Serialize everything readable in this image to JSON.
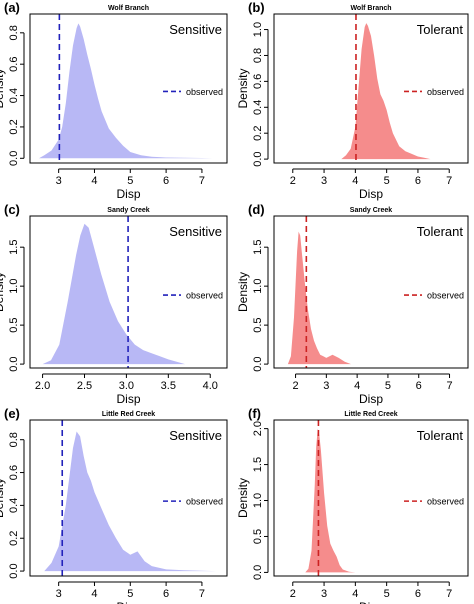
{
  "figure": {
    "panels": [
      {
        "letter": "(a)",
        "site": "Wolf Branch",
        "group": "Sensitive",
        "xlabel": "Disp",
        "ylabel": "Density",
        "legend": "observed",
        "color": "#b8b8f5",
        "line_color": "#2222bb",
        "observed": 3.02,
        "xlim": [
          2.2,
          7.7
        ],
        "ylim": [
          -0.03,
          0.92
        ],
        "x_ticks": [
          3,
          4,
          5,
          6,
          7
        ],
        "y_ticks": [
          0.0,
          0.2,
          0.4,
          0.6,
          0.8
        ],
        "y_tick_labels": [
          "0.0",
          "0.2",
          "0.4",
          "0.6",
          "0.8"
        ],
        "density": {
          "x": [
            2.45,
            2.6,
            2.8,
            3.0,
            3.1,
            3.2,
            3.3,
            3.4,
            3.5,
            3.55,
            3.6,
            3.7,
            3.8,
            3.9,
            4.0,
            4.1,
            4.2,
            4.4,
            4.6,
            4.8,
            5.0,
            5.3,
            5.6,
            6.0,
            6.5,
            7.0,
            7.3
          ],
          "y": [
            0.0,
            0.02,
            0.05,
            0.12,
            0.2,
            0.35,
            0.55,
            0.72,
            0.83,
            0.86,
            0.84,
            0.76,
            0.66,
            0.57,
            0.47,
            0.38,
            0.3,
            0.19,
            0.13,
            0.08,
            0.04,
            0.02,
            0.01,
            0.005,
            0.003,
            0.002,
            0.0
          ]
        }
      },
      {
        "letter": "(b)",
        "site": "Wolf Branch",
        "group": "Tolerant",
        "xlabel": "Disp",
        "ylabel": "Density",
        "legend": "observed",
        "color": "#f58c8c",
        "line_color": "#cc2222",
        "observed": 4.02,
        "xlim": [
          1.4,
          7.6
        ],
        "ylim": [
          -0.03,
          1.12
        ],
        "x_ticks": [
          2,
          3,
          4,
          5,
          6,
          7
        ],
        "y_ticks": [
          0.0,
          0.2,
          0.4,
          0.6,
          0.8,
          1.0
        ],
        "y_tick_labels": [
          "0.0",
          "0.2",
          "0.4",
          "0.6",
          "0.8",
          "1.0"
        ],
        "density": {
          "x": [
            3.55,
            3.7,
            3.85,
            4.0,
            4.1,
            4.2,
            4.3,
            4.35,
            4.4,
            4.5,
            4.6,
            4.7,
            4.8,
            4.9,
            5.0,
            5.1,
            5.2,
            5.4,
            5.6,
            5.8,
            6.0,
            6.2,
            6.4
          ],
          "y": [
            0.0,
            0.03,
            0.08,
            0.25,
            0.55,
            0.85,
            1.02,
            1.05,
            1.03,
            0.95,
            0.8,
            0.62,
            0.5,
            0.45,
            0.38,
            0.28,
            0.2,
            0.1,
            0.06,
            0.04,
            0.02,
            0.01,
            0.0
          ]
        }
      },
      {
        "letter": "(c)",
        "site": "Sandy Creek",
        "group": "Sensitive",
        "xlabel": "Disp",
        "ylabel": "Density",
        "legend": "observed",
        "color": "#b8b8f5",
        "line_color": "#2222bb",
        "observed": 3.02,
        "xlim": [
          1.85,
          4.2
        ],
        "ylim": [
          -0.05,
          1.9
        ],
        "x_ticks": [
          2.0,
          2.5,
          3.0,
          3.5,
          4.0
        ],
        "y_ticks": [
          0.0,
          0.5,
          1.0,
          1.5
        ],
        "x_tick_labels": [
          "2.0",
          "2.5",
          "3.0",
          "3.5",
          "4.0"
        ],
        "y_tick_labels": [
          "0.0",
          "0.5",
          "1.0",
          "1.5"
        ],
        "density": {
          "x": [
            2.0,
            2.1,
            2.2,
            2.3,
            2.4,
            2.45,
            2.5,
            2.55,
            2.6,
            2.7,
            2.8,
            2.9,
            3.0,
            3.1,
            3.2,
            3.3,
            3.4,
            3.5,
            3.6,
            3.7
          ],
          "y": [
            0.0,
            0.05,
            0.25,
            0.8,
            1.4,
            1.65,
            1.8,
            1.75,
            1.55,
            1.15,
            0.8,
            0.55,
            0.38,
            0.25,
            0.18,
            0.14,
            0.1,
            0.06,
            0.03,
            0.0
          ]
        }
      },
      {
        "letter": "(d)",
        "site": "Sandy Creek",
        "group": "Tolerant",
        "xlabel": "Disp",
        "ylabel": "Density",
        "legend": "observed",
        "color": "#f58c8c",
        "line_color": "#cc2222",
        "observed": 2.35,
        "xlim": [
          1.3,
          7.6
        ],
        "ylim": [
          -0.05,
          1.9
        ],
        "x_ticks": [
          2,
          3,
          4,
          5,
          6,
          7
        ],
        "y_ticks": [
          0.0,
          0.5,
          1.0,
          1.5
        ],
        "y_tick_labels": [
          "0.0",
          "0.5",
          "1.0",
          "1.5"
        ],
        "density": {
          "x": [
            1.75,
            1.85,
            1.95,
            2.05,
            2.1,
            2.15,
            2.2,
            2.3,
            2.4,
            2.5,
            2.6,
            2.7,
            2.8,
            2.9,
            3.0,
            3.2,
            3.4,
            3.6,
            3.8
          ],
          "y": [
            0.0,
            0.1,
            0.6,
            1.45,
            1.7,
            1.65,
            1.45,
            1.05,
            0.7,
            0.45,
            0.3,
            0.2,
            0.12,
            0.1,
            0.08,
            0.12,
            0.08,
            0.03,
            0.0
          ]
        }
      },
      {
        "letter": "(e)",
        "site": "Little Red Creek",
        "group": "Sensitive",
        "xlabel": "Disp",
        "ylabel": "Density",
        "legend": "observed",
        "color": "#b8b8f5",
        "line_color": "#2222bb",
        "observed": 3.1,
        "xlim": [
          2.2,
          7.7
        ],
        "ylim": [
          -0.03,
          0.92
        ],
        "x_ticks": [
          3,
          4,
          5,
          6,
          7
        ],
        "y_ticks": [
          0.0,
          0.2,
          0.4,
          0.6,
          0.8
        ],
        "y_tick_labels": [
          "0.0",
          "0.2",
          "0.4",
          "0.6",
          "0.8"
        ],
        "density": {
          "x": [
            2.6,
            2.8,
            3.0,
            3.2,
            3.4,
            3.5,
            3.6,
            3.7,
            3.8,
            3.9,
            4.0,
            4.2,
            4.4,
            4.6,
            4.8,
            5.0,
            5.2,
            5.4,
            5.6,
            6.0,
            6.5,
            7.0,
            7.4
          ],
          "y": [
            0.0,
            0.05,
            0.15,
            0.4,
            0.75,
            0.85,
            0.82,
            0.7,
            0.6,
            0.55,
            0.48,
            0.38,
            0.28,
            0.2,
            0.13,
            0.1,
            0.12,
            0.06,
            0.03,
            0.01,
            0.005,
            0.002,
            0.0
          ]
        }
      },
      {
        "letter": "(f)",
        "site": "Little Red Creek",
        "group": "Tolerant",
        "xlabel": "Disp",
        "ylabel": "Density",
        "legend": "observed",
        "color": "#f58c8c",
        "line_color": "#cc2222",
        "observed": 2.82,
        "xlim": [
          1.4,
          7.6
        ],
        "ylim": [
          -0.05,
          2.12
        ],
        "x_ticks": [
          2,
          3,
          4,
          5,
          6,
          7
        ],
        "y_ticks": [
          0.0,
          0.5,
          1.0,
          1.5,
          2.0
        ],
        "y_tick_labels": [
          "0.0",
          "0.5",
          "1.0",
          "1.5",
          "2.0"
        ],
        "density": {
          "x": [
            2.4,
            2.5,
            2.6,
            2.7,
            2.75,
            2.8,
            2.85,
            2.9,
            3.0,
            3.1,
            3.2,
            3.3,
            3.4,
            3.5,
            3.6,
            3.8,
            4.0
          ],
          "y": [
            0.0,
            0.05,
            0.3,
            1.2,
            1.75,
            2.0,
            1.9,
            1.7,
            1.1,
            0.65,
            0.4,
            0.3,
            0.22,
            0.1,
            0.04,
            0.01,
            0.0
          ]
        }
      }
    ]
  },
  "chart_data": [
    {
      "type": "area",
      "title": "Wolf Branch",
      "xlabel": "Disp",
      "ylabel": "Density",
      "series": [
        {
          "name": "Sensitive",
          "note": "see figure.panels[0].density"
        }
      ],
      "observed": 3.02
    },
    {
      "type": "area",
      "title": "Wolf Branch",
      "xlabel": "Disp",
      "ylabel": "Density",
      "series": [
        {
          "name": "Tolerant",
          "note": "see figure.panels[1].density"
        }
      ],
      "observed": 4.02
    },
    {
      "type": "area",
      "title": "Sandy Creek",
      "xlabel": "Disp",
      "ylabel": "Density",
      "series": [
        {
          "name": "Sensitive",
          "note": "see figure.panels[2].density"
        }
      ],
      "observed": 3.02
    },
    {
      "type": "area",
      "title": "Sandy Creek",
      "xlabel": "Disp",
      "ylabel": "Density",
      "series": [
        {
          "name": "Tolerant",
          "note": "see figure.panels[3].density"
        }
      ],
      "observed": 2.35
    },
    {
      "type": "area",
      "title": "Little Red Creek",
      "xlabel": "Disp",
      "ylabel": "Density",
      "series": [
        {
          "name": "Sensitive",
          "note": "see figure.panels[4].density"
        }
      ],
      "observed": 3.1
    },
    {
      "type": "area",
      "title": "Little Red Creek",
      "xlabel": "Disp",
      "ylabel": "Density",
      "series": [
        {
          "name": "Tolerant",
          "note": "see figure.panels[5].density"
        }
      ],
      "observed": 2.82
    }
  ]
}
